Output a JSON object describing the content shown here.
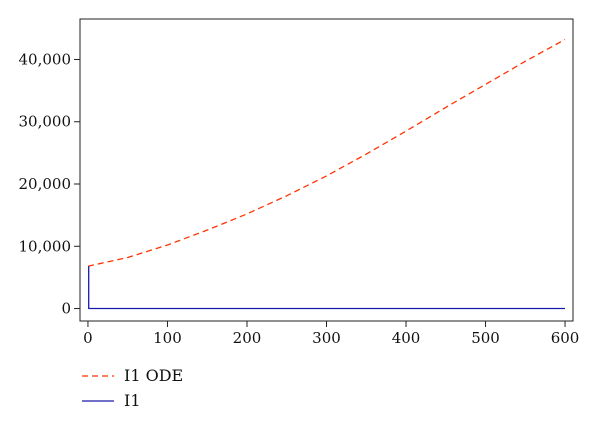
{
  "chart_data": {
    "type": "line",
    "title": "",
    "xlabel": "",
    "ylabel": "",
    "xlim": [
      -10,
      610
    ],
    "ylim": [
      -2000,
      46500
    ],
    "x_ticks": [
      0,
      100,
      200,
      300,
      400,
      500,
      600
    ],
    "x_tick_labels": [
      "0",
      "100",
      "200",
      "300",
      "400",
      "500",
      "600"
    ],
    "y_ticks": [
      0,
      10000,
      20000,
      30000,
      40000
    ],
    "y_tick_labels": [
      "0",
      "10,000",
      "20,000",
      "30,000",
      "40,000"
    ],
    "grid": false,
    "legend_position": "bottom-left",
    "series": [
      {
        "name": "I1 ODE",
        "color": "#ff3300",
        "dash": "dashed",
        "x": [
          0,
          50,
          100,
          150,
          200,
          250,
          300,
          350,
          400,
          450,
          500,
          550,
          600
        ],
        "values": [
          6800,
          8200,
          10200,
          12600,
          15200,
          18100,
          21300,
          24800,
          28500,
          32300,
          36000,
          39700,
          43200
        ]
      },
      {
        "name": "I1",
        "color": "#1a1aaa",
        "dash": "solid",
        "x": [
          1,
          1,
          2,
          600
        ],
        "values": [
          6800,
          0,
          0,
          0
        ]
      }
    ]
  }
}
